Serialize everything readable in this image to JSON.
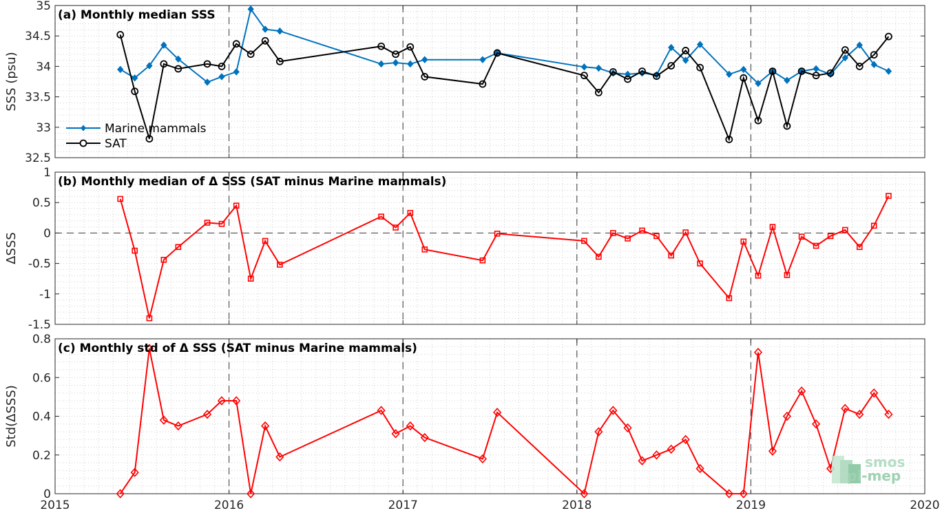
{
  "chart_data": [
    {
      "type": "line",
      "title": "(a) Monthly median SSS",
      "xlabel": "",
      "ylabel": "SSS (psu)",
      "xlim": [
        2015,
        2020
      ],
      "ylim": [
        32.5,
        35
      ],
      "x_ticks": [
        "2015",
        "2016",
        "2017",
        "2018",
        "2019",
        "2020"
      ],
      "y_ticks": [
        "32.5",
        "33",
        "33.5",
        "34",
        "34.5",
        "35"
      ],
      "grid": true,
      "legend": "bottom-left",
      "series": [
        {
          "name": "Marine mammals",
          "color": "#0072BD",
          "marker": "diamond-filled",
          "x": [
            2015.375,
            2015.458,
            2015.542,
            2015.625,
            2015.708,
            2015.875,
            2015.958,
            2016.042,
            2016.125,
            2016.208,
            2016.292,
            2016.875,
            2016.958,
            2017.042,
            2017.125,
            2017.458,
            2017.542,
            2018.042,
            2018.125,
            2018.208,
            2018.292,
            2018.375,
            2018.458,
            2018.542,
            2018.625,
            2018.708,
            2018.875,
            2018.958,
            2019.042,
            2019.125,
            2019.208,
            2019.292,
            2019.375,
            2019.458,
            2019.542,
            2019.625,
            2019.708,
            2019.792
          ],
          "values": [
            33.95,
            33.81,
            34.01,
            34.35,
            34.12,
            33.74,
            33.83,
            33.91,
            34.94,
            34.61,
            34.58,
            34.04,
            34.06,
            34.04,
            34.11,
            34.11,
            34.22,
            33.99,
            33.97,
            33.89,
            33.87,
            33.89,
            33.86,
            34.31,
            34.1,
            34.36,
            33.87,
            33.95,
            33.72,
            33.92,
            33.77,
            33.92,
            33.96,
            33.87,
            34.14,
            34.35,
            34.03,
            33.92
          ]
        },
        {
          "name": "SAT",
          "color": "#000000",
          "marker": "circle-open",
          "x": [
            2015.375,
            2015.458,
            2015.542,
            2015.625,
            2015.708,
            2015.875,
            2015.958,
            2016.042,
            2016.125,
            2016.208,
            2016.292,
            2016.875,
            2016.958,
            2017.042,
            2017.125,
            2017.458,
            2017.542,
            2018.042,
            2018.125,
            2018.208,
            2018.292,
            2018.375,
            2018.458,
            2018.542,
            2018.625,
            2018.708,
            2018.875,
            2018.958,
            2019.042,
            2019.125,
            2019.208,
            2019.292,
            2019.375,
            2019.458,
            2019.542,
            2019.625,
            2019.708,
            2019.792
          ],
          "values": [
            34.52,
            33.59,
            32.81,
            34.04,
            33.96,
            34.04,
            34.0,
            34.37,
            34.2,
            34.42,
            34.08,
            34.33,
            34.2,
            34.32,
            33.83,
            33.71,
            34.22,
            33.85,
            33.57,
            33.91,
            33.79,
            33.92,
            33.84,
            34.01,
            34.26,
            33.98,
            32.8,
            33.81,
            33.11,
            33.92,
            33.02,
            33.92,
            33.85,
            33.89,
            34.27,
            34.0,
            34.19,
            34.49
          ]
        }
      ]
    },
    {
      "type": "line",
      "title": "(b) Monthly median of Δ SSS (SAT minus Marine mammals)",
      "xlabel": "",
      "ylabel": "ΔSSS",
      "xlim": [
        2015,
        2020
      ],
      "ylim": [
        -1.5,
        1
      ],
      "x_ticks": [
        "2015",
        "2016",
        "2017",
        "2018",
        "2019",
        "2020"
      ],
      "y_ticks": [
        "-1.5",
        "-1",
        "-0.5",
        "0",
        "0.5",
        "1"
      ],
      "grid": true,
      "series": [
        {
          "color": "#ff0000",
          "marker": "square-open",
          "x": [
            2015.375,
            2015.458,
            2015.542,
            2015.625,
            2015.708,
            2015.875,
            2015.958,
            2016.042,
            2016.125,
            2016.208,
            2016.292,
            2016.875,
            2016.958,
            2017.042,
            2017.125,
            2017.458,
            2017.542,
            2018.042,
            2018.125,
            2018.208,
            2018.292,
            2018.375,
            2018.458,
            2018.542,
            2018.625,
            2018.708,
            2018.875,
            2018.958,
            2019.042,
            2019.125,
            2019.208,
            2019.292,
            2019.375,
            2019.458,
            2019.542,
            2019.625,
            2019.708,
            2019.792
          ],
          "values": [
            0.56,
            -0.29,
            -1.4,
            -0.44,
            -0.23,
            0.17,
            0.15,
            0.45,
            -0.75,
            -0.13,
            -0.52,
            0.27,
            0.09,
            0.33,
            -0.27,
            -0.45,
            -0.01,
            -0.13,
            -0.39,
            0.0,
            -0.09,
            0.04,
            -0.05,
            -0.37,
            0.01,
            -0.5,
            -1.07,
            -0.14,
            -0.7,
            0.1,
            -0.69,
            -0.06,
            -0.21,
            -0.05,
            0.05,
            -0.23,
            0.12,
            0.61
          ]
        }
      ]
    },
    {
      "type": "line",
      "title": "(c) Monthly std of Δ SSS (SAT minus Marine mammals)",
      "xlabel": "",
      "ylabel": "Std(ΔSSS)",
      "xlim": [
        2015,
        2020
      ],
      "ylim": [
        0,
        0.8
      ],
      "x_ticks": [
        "2015",
        "2016",
        "2017",
        "2018",
        "2019",
        "2020"
      ],
      "y_ticks": [
        "0",
        "0.2",
        "0.4",
        "0.6",
        "0.8"
      ],
      "grid": true,
      "series": [
        {
          "color": "#ff0000",
          "marker": "diamond-open",
          "x": [
            2015.375,
            2015.458,
            2015.542,
            2015.625,
            2015.708,
            2015.875,
            2015.958,
            2016.042,
            2016.125,
            2016.208,
            2016.292,
            2016.875,
            2016.958,
            2017.042,
            2017.125,
            2017.458,
            2017.542,
            2018.042,
            2018.125,
            2018.208,
            2018.292,
            2018.375,
            2018.458,
            2018.542,
            2018.625,
            2018.708,
            2018.875,
            2018.958,
            2019.042,
            2019.125,
            2019.208,
            2019.292,
            2019.375,
            2019.458,
            2019.542,
            2019.625,
            2019.708,
            2019.792
          ],
          "values": [
            0.0,
            0.11,
            0.75,
            0.38,
            0.35,
            0.41,
            0.48,
            0.48,
            0.0,
            0.35,
            0.19,
            0.43,
            0.31,
            0.35,
            0.29,
            0.18,
            0.42,
            0.0,
            0.32,
            0.43,
            0.34,
            0.17,
            0.2,
            0.23,
            0.28,
            0.13,
            0.0,
            0.0,
            0.73,
            0.22,
            0.4,
            0.53,
            0.36,
            0.13,
            0.44,
            0.41,
            0.52,
            0.41
          ]
        }
      ]
    }
  ],
  "logo": {
    "line1": "smos",
    "line2": "pi-mep"
  }
}
